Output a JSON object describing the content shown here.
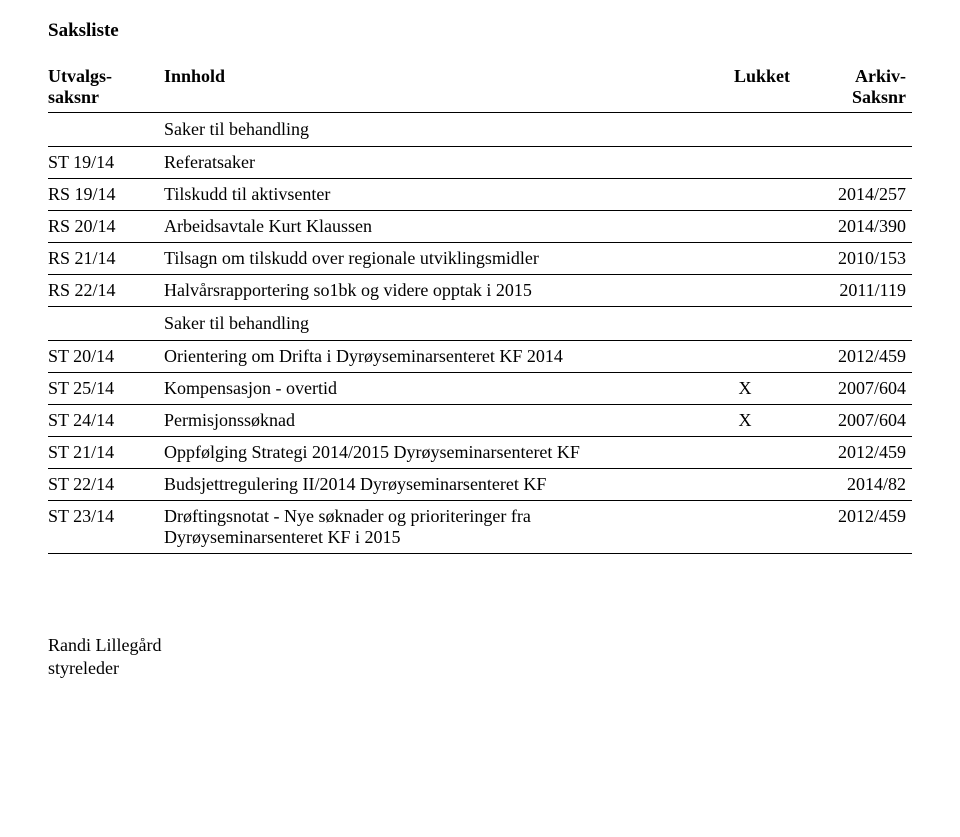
{
  "title": "Saksliste",
  "headers": {
    "utvalg_line1": "Utvalgs-",
    "utvalg_line2": "saksnr",
    "innhold": "Innhold",
    "lukket": "Lukket",
    "arkiv_line1": "Arkiv-",
    "arkiv_line2": "Saksnr"
  },
  "section_label": "Saker til behandling",
  "rows": [
    {
      "id": "ST 19/14",
      "text": "Referatsaker",
      "lukket": "",
      "arkiv": ""
    },
    {
      "id": "RS 19/14",
      "text": "Tilskudd til aktivsenter",
      "lukket": "",
      "arkiv": "2014/257"
    },
    {
      "id": "RS 20/14",
      "text": "Arbeidsavtale Kurt Klaussen",
      "lukket": "",
      "arkiv": "2014/390"
    },
    {
      "id": "RS 21/14",
      "text": "Tilsagn om tilskudd over regionale utviklingsmidler",
      "lukket": "",
      "arkiv": "2010/153"
    },
    {
      "id": "RS 22/14",
      "text": "Halvårsrapportering so1bk og videre opptak i 2015",
      "lukket": "",
      "arkiv": "2011/119"
    }
  ],
  "rows2": [
    {
      "id": "ST 20/14",
      "text": "Orientering om Drifta i Dyrøyseminarsenteret KF 2014",
      "lukket": "",
      "arkiv": "2012/459"
    },
    {
      "id": "ST 25/14",
      "text": "Kompensasjon - overtid",
      "lukket": "X",
      "arkiv": "2007/604"
    },
    {
      "id": "ST 24/14",
      "text": "Permisjonssøknad",
      "lukket": "X",
      "arkiv": "2007/604"
    },
    {
      "id": "ST 21/14",
      "text": "Oppfølging Strategi 2014/2015 Dyrøyseminarsenteret KF",
      "lukket": "",
      "arkiv": "2012/459"
    },
    {
      "id": "ST 22/14",
      "text": "Budsjettregulering II/2014 Dyrøyseminarsenteret KF",
      "lukket": "",
      "arkiv": "2014/82"
    },
    {
      "id": "ST 23/14",
      "text": "Drøftingsnotat - Nye søknader og prioriteringer fra Dyrøyseminarsenteret KF i 2015",
      "lukket": "",
      "arkiv": "2012/459"
    }
  ],
  "signature": {
    "name": "Randi Lillegård",
    "role": "styreleder"
  }
}
